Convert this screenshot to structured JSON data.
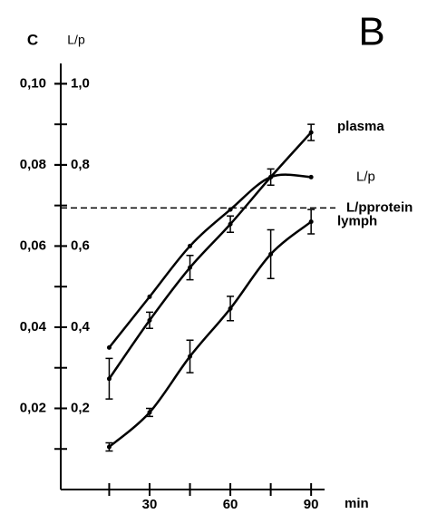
{
  "chart_data": {
    "type": "line",
    "panel_label": "B",
    "ylabel": "C",
    "y2label": "L/p",
    "xlabel": "min",
    "x": [
      15,
      30,
      45,
      60,
      75,
      90
    ],
    "xlim": [
      -3,
      95
    ],
    "xticks": [
      30,
      60,
      90
    ],
    "xminor_ticks": [
      15,
      45,
      75
    ],
    "ylim": [
      0,
      0.105
    ],
    "yticks": [
      {
        "value": 0.02,
        "label": "0,02"
      },
      {
        "value": 0.04,
        "label": "0,04"
      },
      {
        "value": 0.06,
        "label": "0,06"
      },
      {
        "value": 0.08,
        "label": "0,08"
      },
      {
        "value": 0.1,
        "label": "0,10"
      }
    ],
    "yminor_ticks": [
      0.01,
      0.03,
      0.05,
      0.07,
      0.09
    ],
    "y2lim": [
      0,
      1.05
    ],
    "y2ticks": [
      {
        "value": 0.2,
        "label": "0,2"
      },
      {
        "value": 0.4,
        "label": "0,4"
      },
      {
        "value": 0.6,
        "label": "0,6"
      },
      {
        "value": 0.8,
        "label": "0,8"
      },
      {
        "value": 1.0,
        "label": "1,0"
      }
    ],
    "series": [
      {
        "name": "plasma",
        "color": "#000000",
        "values": [
          0.0273,
          0.0417,
          0.0547,
          0.0654,
          0.077,
          0.088
        ],
        "errors": [
          0.005,
          0.002,
          0.003,
          0.002,
          0.002,
          0.002
        ]
      },
      {
        "name": "L/p",
        "color": "#000000",
        "axis": "y2",
        "values": [
          0.35,
          0.475,
          0.6,
          0.69,
          0.77,
          0.77
        ]
      },
      {
        "name": "lymph",
        "color": "#000000",
        "values": [
          0.0105,
          0.019,
          0.0328,
          0.0446,
          0.058,
          0.066
        ],
        "errors": [
          0.001,
          0.001,
          0.004,
          0.003,
          0.006,
          0.003
        ]
      }
    ],
    "reference_line": {
      "name": "L/pprotein",
      "value": 0.694,
      "axis": "y2"
    }
  }
}
